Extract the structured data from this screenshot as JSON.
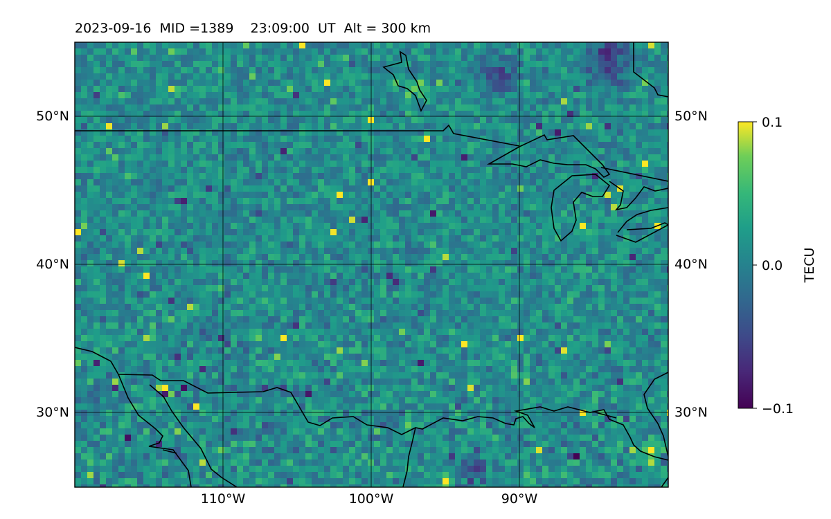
{
  "title": "2023-09-16  MID =1389    23:09:00  UT  Alt = 300 km",
  "chart_data": {
    "type": "heatmap",
    "title": "2023-09-16  MID =1389    23:09:00  UT  Alt = 300 km",
    "x_ticks": [
      {
        "value": -110,
        "label": "110°W"
      },
      {
        "value": -100,
        "label": "100°W"
      },
      {
        "value": -90,
        "label": "90°W"
      }
    ],
    "y_ticks": [
      {
        "value": 50,
        "label": "50°N"
      },
      {
        "value": 40,
        "label": "40°N"
      },
      {
        "value": 30,
        "label": "30°N"
      }
    ],
    "xlim": [
      -120,
      -80
    ],
    "ylim": [
      25,
      55
    ],
    "grid": true,
    "colormap": "viridis",
    "colorbar": {
      "label": "TECU",
      "range": [
        -0.1,
        0.1
      ],
      "ticks": [
        {
          "value": 0.1,
          "label": "0.1"
        },
        {
          "value": 0.0,
          "label": "0.0"
        },
        {
          "value": -0.1,
          "label": "−0.1"
        }
      ]
    },
    "map_features": [
      "coastlines",
      "country borders",
      "Great Lakes"
    ],
    "field_description": "Differential TEC perturbation map; mostly near zero with localized positive (yellow) anomalies near 35°N, 98°W, Hudson Bay coast and Gulf region; negative (dark blue) patches near 53°N 88°W and over Gulf of Mexico."
  }
}
